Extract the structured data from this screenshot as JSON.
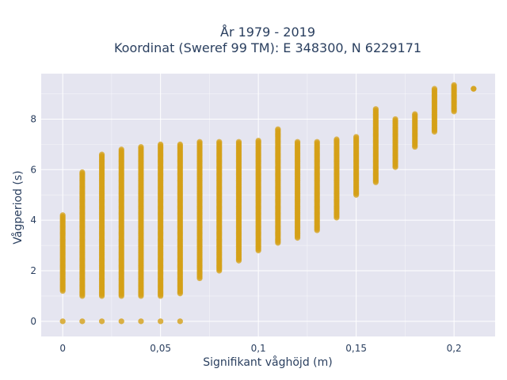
{
  "chart_data": {
    "type": "scatter",
    "title_line1": "År 1979 - 2019",
    "title_line2": "Koordinat (Sweref 99 TM): E 348300, N 6229171",
    "xlabel": "Signifikant våghöjd (m)",
    "ylabel": "Vågperiod (s)",
    "xlim": [
      -0.011,
      0.221
    ],
    "ylim": [
      -0.6,
      9.8
    ],
    "x_ticks": [
      0,
      0.05,
      0.1,
      0.15,
      0.2
    ],
    "x_tick_labels": [
      "0",
      "0,05",
      "0,1",
      "0,15",
      "0,2"
    ],
    "y_ticks": [
      0,
      2,
      4,
      6,
      8
    ],
    "y_tick_labels": [
      "0",
      "2",
      "4",
      "6",
      "8"
    ],
    "grid": true,
    "colors": {
      "point": "#d4a017",
      "plot_bg": "#e5e5f0",
      "grid": "#ffffff",
      "text": "#2a3f5f"
    },
    "columns": [
      {
        "x": 0.0,
        "ymin": 1.2,
        "ymax": 4.2,
        "extra": [
          0
        ]
      },
      {
        "x": 0.01,
        "ymin": 1.0,
        "ymax": 5.9,
        "extra": [
          0
        ]
      },
      {
        "x": 0.02,
        "ymin": 1.0,
        "ymax": 6.6,
        "extra": [
          0
        ]
      },
      {
        "x": 0.03,
        "ymin": 1.0,
        "ymax": 6.8,
        "extra": [
          0
        ]
      },
      {
        "x": 0.04,
        "ymin": 1.0,
        "ymax": 6.9,
        "extra": [
          0
        ]
      },
      {
        "x": 0.05,
        "ymin": 1.0,
        "ymax": 7.0,
        "extra": [
          0
        ]
      },
      {
        "x": 0.06,
        "ymin": 1.1,
        "ymax": 7.0,
        "extra": [
          0
        ]
      },
      {
        "x": 0.07,
        "ymin": 1.7,
        "ymax": 7.1,
        "extra": []
      },
      {
        "x": 0.08,
        "ymin": 2.0,
        "ymax": 7.1,
        "extra": []
      },
      {
        "x": 0.09,
        "ymin": 2.4,
        "ymax": 7.1,
        "extra": []
      },
      {
        "x": 0.1,
        "ymin": 2.8,
        "ymax": 7.15,
        "extra": []
      },
      {
        "x": 0.11,
        "ymin": 3.1,
        "ymax": 7.6,
        "extra": []
      },
      {
        "x": 0.12,
        "ymin": 3.3,
        "ymax": 7.1,
        "extra": []
      },
      {
        "x": 0.13,
        "ymin": 3.6,
        "ymax": 7.1,
        "extra": []
      },
      {
        "x": 0.14,
        "ymin": 4.1,
        "ymax": 7.2,
        "extra": []
      },
      {
        "x": 0.15,
        "ymin": 5.0,
        "ymax": 7.3,
        "extra": []
      },
      {
        "x": 0.16,
        "ymin": 5.5,
        "ymax": 8.4,
        "extra": []
      },
      {
        "x": 0.17,
        "ymin": 6.1,
        "ymax": 8.0,
        "extra": []
      },
      {
        "x": 0.18,
        "ymin": 6.9,
        "ymax": 8.2,
        "extra": []
      },
      {
        "x": 0.19,
        "ymin": 7.5,
        "ymax": 9.2,
        "extra": []
      },
      {
        "x": 0.2,
        "ymin": 8.3,
        "ymax": 9.35,
        "extra": []
      },
      {
        "x": 0.21,
        "ymin": 9.2,
        "ymax": 9.2,
        "extra": []
      }
    ]
  }
}
